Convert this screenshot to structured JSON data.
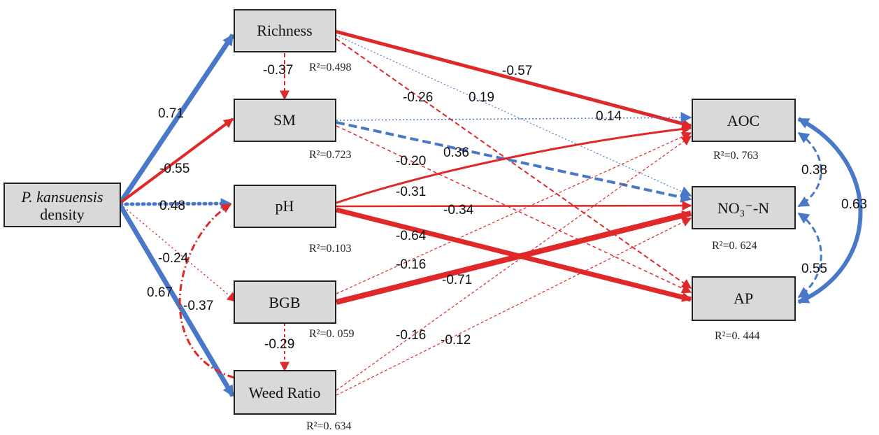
{
  "colors": {
    "positive": "#4a78c8",
    "negative": "#e02828",
    "node_fill": "#d9d9d9"
  },
  "nodes": {
    "pk": {
      "line1": "P. kansuensis",
      "line2": "density"
    },
    "richness": {
      "label": "Richness",
      "r2": "R²=0.498"
    },
    "sm": {
      "label": "SM",
      "r2": "R²=0.723"
    },
    "ph": {
      "label": "pH",
      "r2": "R²=0.103"
    },
    "bgb": {
      "label": "BGB",
      "r2": "R²=0. 059"
    },
    "weed": {
      "label": "Weed Ratio",
      "r2": "R²=0. 634"
    },
    "aoc": {
      "label": "AOC",
      "r2": "R²=0. 763"
    },
    "no3": {
      "label": "NO₃⁻-N",
      "r2": "R²=0. 624"
    },
    "ap": {
      "label": "AP",
      "r2": "R²=0. 444"
    }
  },
  "paths": [
    {
      "from": "pk",
      "to": "richness",
      "value": "0.71",
      "sign": "positive",
      "style": "solid",
      "strength": "strong"
    },
    {
      "from": "pk",
      "to": "sm",
      "value": "-0.55",
      "sign": "negative",
      "style": "solid",
      "strength": "medium"
    },
    {
      "from": "pk",
      "to": "ph",
      "value": "0.48",
      "sign": "positive",
      "style": "dotted",
      "strength": "medium"
    },
    {
      "from": "pk",
      "to": "bgb",
      "value": "-0.24",
      "sign": "negative",
      "style": "dotted",
      "strength": "weak"
    },
    {
      "from": "pk",
      "to": "weed",
      "value": "0.67",
      "sign": "positive",
      "style": "solid",
      "strength": "strong"
    },
    {
      "from": "richness",
      "to": "sm",
      "value": "-0.37",
      "sign": "negative",
      "style": "dashed",
      "strength": "weak"
    },
    {
      "from": "weed",
      "to": "ph",
      "value": "-0.37",
      "sign": "negative",
      "style": "dashdot",
      "strength": "weak"
    },
    {
      "from": "bgb",
      "to": "weed",
      "value": "-0.29",
      "sign": "negative",
      "style": "dashed",
      "strength": "weak"
    },
    {
      "from": "richness",
      "to": "aoc",
      "value": "-0.57",
      "sign": "negative",
      "style": "solid",
      "strength": "strong"
    },
    {
      "from": "richness",
      "to": "no3",
      "value": "0.19",
      "sign": "positive",
      "style": "dotted",
      "strength": "weak"
    },
    {
      "from": "richness",
      "to": "ap",
      "value": "-0.26",
      "sign": "negative",
      "style": "dashed",
      "strength": "weak"
    },
    {
      "from": "sm",
      "to": "aoc",
      "value": "0.14",
      "sign": "positive",
      "style": "dotted",
      "strength": "weak"
    },
    {
      "from": "sm",
      "to": "no3",
      "value": "0.36",
      "sign": "positive",
      "style": "dashed",
      "strength": "medium"
    },
    {
      "from": "sm",
      "to": "ap",
      "value": "-0.20",
      "sign": "negative",
      "style": "dashed",
      "strength": "weak"
    },
    {
      "from": "ph",
      "to": "aoc",
      "value": "-0.31",
      "sign": "negative",
      "style": "solid",
      "strength": "medium"
    },
    {
      "from": "ph",
      "to": "no3",
      "value": "-0.34",
      "sign": "negative",
      "style": "solid",
      "strength": "medium"
    },
    {
      "from": "ph",
      "to": "ap",
      "value": "-0.64",
      "sign": "negative",
      "style": "solid",
      "strength": "strong"
    },
    {
      "from": "bgb",
      "to": "aoc",
      "value": "-0.16",
      "sign": "negative",
      "style": "dashed",
      "strength": "weak"
    },
    {
      "from": "bgb",
      "to": "no3",
      "value": "-0.71",
      "sign": "negative",
      "style": "solid",
      "strength": "strong"
    },
    {
      "from": "weed",
      "to": "aoc",
      "value": "-0.16",
      "sign": "negative",
      "style": "dashed",
      "strength": "weak"
    },
    {
      "from": "weed",
      "to": "no3",
      "value": "-0.12",
      "sign": "negative",
      "style": "dashed",
      "strength": "weak"
    },
    {
      "from": "aoc",
      "to": "no3",
      "value": "0.38",
      "sign": "positive",
      "style": "dashed",
      "strength": "medium",
      "kind": "correlation"
    },
    {
      "from": "no3",
      "to": "ap",
      "value": "0.55",
      "sign": "positive",
      "style": "dashed",
      "strength": "medium",
      "kind": "correlation"
    },
    {
      "from": "aoc",
      "to": "ap",
      "value": "0.63",
      "sign": "positive",
      "style": "solid",
      "strength": "strong",
      "kind": "correlation"
    }
  ]
}
